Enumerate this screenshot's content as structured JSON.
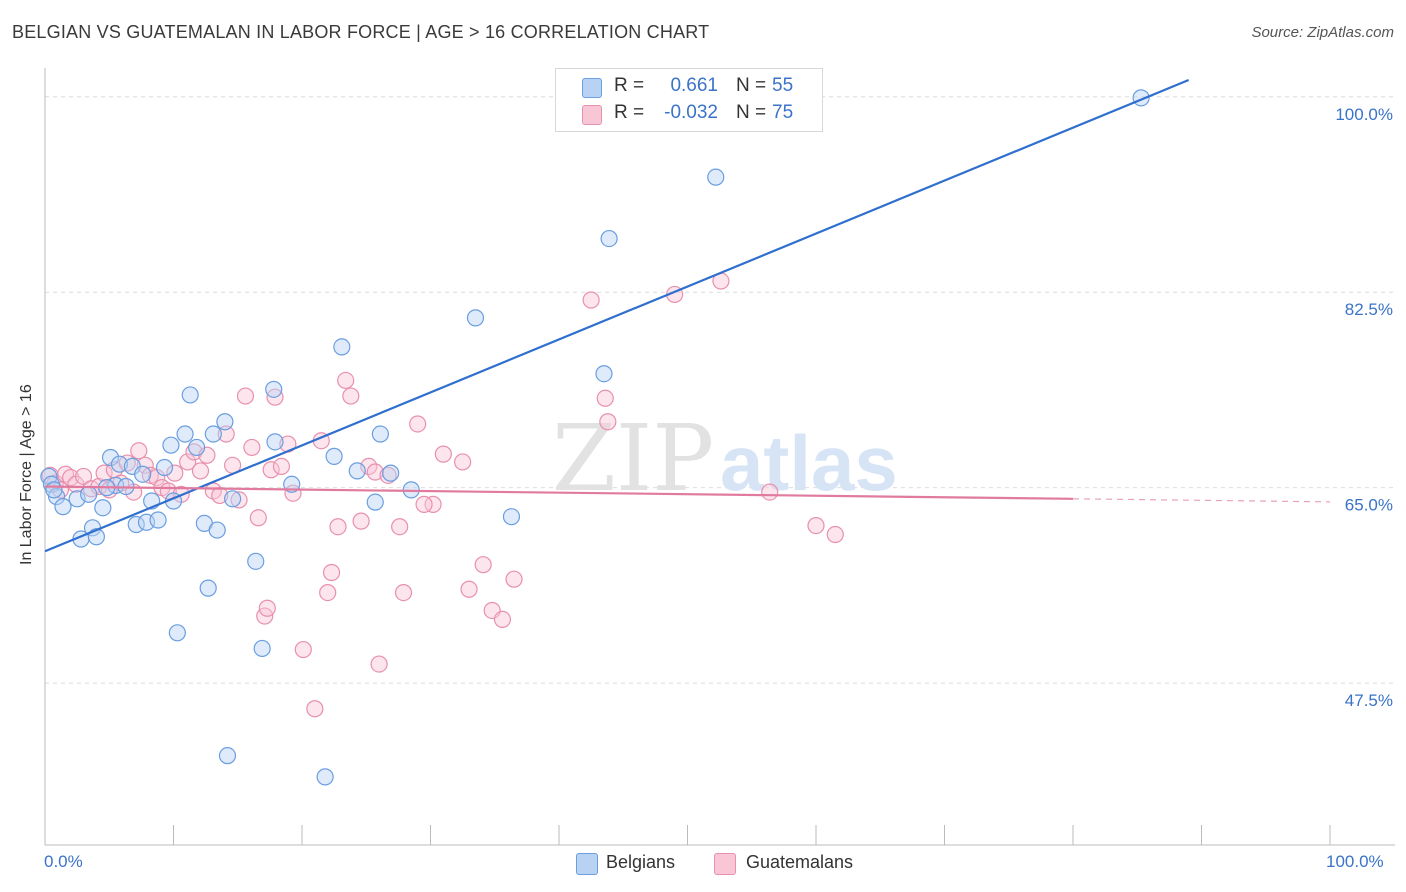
{
  "title": "BELGIAN VS GUATEMALAN IN LABOR FORCE | AGE > 16 CORRELATION CHART",
  "source": "Source: ZipAtlas.com",
  "watermark": {
    "zip": "ZIP",
    "atlas": "atlas"
  },
  "legend": {
    "r_label": "R =",
    "n_label": "N =",
    "rows": [
      {
        "name": "Belgians",
        "r": "0.661",
        "n": "55",
        "fill": "#b8d2f3",
        "stroke": "#6a9ee0"
      },
      {
        "name": "Guatemalans",
        "r": "-0.032",
        "n": "75",
        "fill": "#f9c6d6",
        "stroke": "#e890ae"
      }
    ]
  },
  "colors": {
    "blue_line": "#2f6fce",
    "pink_line": "#e07a9e",
    "tick_text": "#3a73c8",
    "grid": "#dcdcdc"
  },
  "chart_data": {
    "type": "scatter",
    "title": "BELGIAN VS GUATEMALAN IN LABOR FORCE | AGE > 16 CORRELATION CHART",
    "xlabel": "",
    "ylabel": "In Labor Force | Age > 16",
    "xlim": [
      0,
      100
    ],
    "ylim": [
      33,
      101.5
    ],
    "x_tick_labels": [
      "0.0%",
      "100.0%"
    ],
    "y_ticks": [
      47.5,
      65.0,
      82.5,
      100.0
    ],
    "y_tick_labels": [
      "47.5%",
      "65.0%",
      "82.5%",
      "100.0%"
    ],
    "series": [
      {
        "name": "Belgians",
        "color": "#6a9ee0",
        "trend": {
          "x0": 0,
          "y0": 59.3,
          "x1": 89.0,
          "y1": 101.5
        },
        "points": [
          [
            0.3,
            66.0
          ],
          [
            0.5,
            65.3
          ],
          [
            0.9,
            64.2
          ],
          [
            1.4,
            63.3
          ],
          [
            2.5,
            64.0
          ],
          [
            2.8,
            60.4
          ],
          [
            3.4,
            64.4
          ],
          [
            3.7,
            61.4
          ],
          [
            4.0,
            60.6
          ],
          [
            4.5,
            63.2
          ],
          [
            5.1,
            67.7
          ],
          [
            5.5,
            65.2
          ],
          [
            5.8,
            67.1
          ],
          [
            6.3,
            65.1
          ],
          [
            6.8,
            66.9
          ],
          [
            7.1,
            61.7
          ],
          [
            7.6,
            66.2
          ],
          [
            7.9,
            61.9
          ],
          [
            8.3,
            63.8
          ],
          [
            8.8,
            62.1
          ],
          [
            9.3,
            66.8
          ],
          [
            9.8,
            68.8
          ],
          [
            10.0,
            63.8
          ],
          [
            10.3,
            52.0
          ],
          [
            10.9,
            69.8
          ],
          [
            11.3,
            73.3
          ],
          [
            11.8,
            68.6
          ],
          [
            12.4,
            61.8
          ],
          [
            12.7,
            56.0
          ],
          [
            13.1,
            69.8
          ],
          [
            13.4,
            61.2
          ],
          [
            14.0,
            70.9
          ],
          [
            14.2,
            41.0
          ],
          [
            14.6,
            64.0
          ],
          [
            16.4,
            58.4
          ],
          [
            16.9,
            50.6
          ],
          [
            17.8,
            73.8
          ],
          [
            17.9,
            69.1
          ],
          [
            19.2,
            65.3
          ],
          [
            22.5,
            67.8
          ],
          [
            23.1,
            77.6
          ],
          [
            21.8,
            39.1
          ],
          [
            24.3,
            66.5
          ],
          [
            25.7,
            63.7
          ],
          [
            26.1,
            69.8
          ],
          [
            26.9,
            66.3
          ],
          [
            28.5,
            64.8
          ],
          [
            33.5,
            80.2
          ],
          [
            36.3,
            62.4
          ],
          [
            43.5,
            75.2
          ],
          [
            43.9,
            87.3
          ],
          [
            52.2,
            92.8
          ],
          [
            85.3,
            99.9
          ],
          [
            0.7,
            64.8
          ],
          [
            4.8,
            65.0
          ]
        ]
      },
      {
        "name": "Guatemalans",
        "color": "#e890ae",
        "trend": {
          "x0": 0,
          "y0": 65.1,
          "x1": 80.0,
          "y1": 64.0,
          "dash_to": 100.0
        },
        "points": [
          [
            0.4,
            66.1
          ],
          [
            0.8,
            65.4
          ],
          [
            1.2,
            64.8
          ],
          [
            1.6,
            66.2
          ],
          [
            2.0,
            65.9
          ],
          [
            2.4,
            65.3
          ],
          [
            3.0,
            66.0
          ],
          [
            3.6,
            64.9
          ],
          [
            4.2,
            65.1
          ],
          [
            4.6,
            66.3
          ],
          [
            5.0,
            64.8
          ],
          [
            5.4,
            66.6
          ],
          [
            5.9,
            65.4
          ],
          [
            6.4,
            67.2
          ],
          [
            6.9,
            64.6
          ],
          [
            7.3,
            68.3
          ],
          [
            7.8,
            67.0
          ],
          [
            8.2,
            66.1
          ],
          [
            8.7,
            65.9
          ],
          [
            9.1,
            65.0
          ],
          [
            9.6,
            64.7
          ],
          [
            10.1,
            66.3
          ],
          [
            10.6,
            64.4
          ],
          [
            11.1,
            67.3
          ],
          [
            11.6,
            68.2
          ],
          [
            12.1,
            66.5
          ],
          [
            12.6,
            67.9
          ],
          [
            13.1,
            64.7
          ],
          [
            13.6,
            64.3
          ],
          [
            14.1,
            69.8
          ],
          [
            14.6,
            67.0
          ],
          [
            15.1,
            63.9
          ],
          [
            15.6,
            73.2
          ],
          [
            16.1,
            68.6
          ],
          [
            16.6,
            62.3
          ],
          [
            17.1,
            53.5
          ],
          [
            17.3,
            54.2
          ],
          [
            17.6,
            66.6
          ],
          [
            17.9,
            73.1
          ],
          [
            18.4,
            66.9
          ],
          [
            18.9,
            68.9
          ],
          [
            19.3,
            64.5
          ],
          [
            20.1,
            50.5
          ],
          [
            21.0,
            45.2
          ],
          [
            21.5,
            69.2
          ],
          [
            22.0,
            55.6
          ],
          [
            22.3,
            57.4
          ],
          [
            22.8,
            61.5
          ],
          [
            23.4,
            74.6
          ],
          [
            23.8,
            73.2
          ],
          [
            24.6,
            62.0
          ],
          [
            25.2,
            66.9
          ],
          [
            25.7,
            66.4
          ],
          [
            26.0,
            49.2
          ],
          [
            26.7,
            66.1
          ],
          [
            27.6,
            61.5
          ],
          [
            27.9,
            55.6
          ],
          [
            29.0,
            70.7
          ],
          [
            30.2,
            63.5
          ],
          [
            31.0,
            68.0
          ],
          [
            32.5,
            67.3
          ],
          [
            33.0,
            55.9
          ],
          [
            34.1,
            58.1
          ],
          [
            34.8,
            54.0
          ],
          [
            35.6,
            53.2
          ],
          [
            36.5,
            56.8
          ],
          [
            42.5,
            81.8
          ],
          [
            43.6,
            73.0
          ],
          [
            43.8,
            70.9
          ],
          [
            49.0,
            82.3
          ],
          [
            52.6,
            83.5
          ],
          [
            56.4,
            64.6
          ],
          [
            60.0,
            61.6
          ],
          [
            61.5,
            60.8
          ],
          [
            29.5,
            63.5
          ]
        ]
      }
    ],
    "legend_position": "top-center"
  }
}
